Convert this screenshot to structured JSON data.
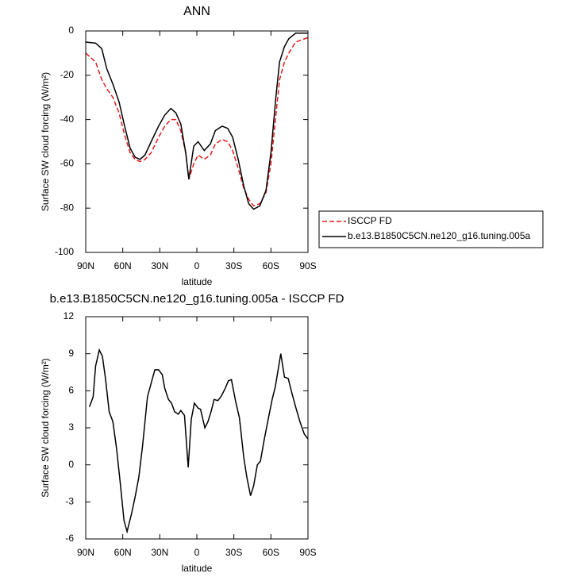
{
  "chart_data": [
    {
      "type": "line",
      "title": "ANN",
      "xlabel": "latitude",
      "ylabel": "Surface SW cloud forcing (W/m²)",
      "x": [
        90,
        82,
        77,
        73,
        68,
        63,
        58.5,
        54,
        50,
        46,
        42,
        37,
        31,
        26,
        21,
        17,
        13,
        9,
        6.5,
        2.5,
        -1,
        -6,
        -11,
        -15,
        -20.5,
        -25,
        -29,
        -33.5,
        -38,
        -42,
        -46,
        -51,
        -56,
        -60,
        -64,
        -67,
        -71,
        -74.5,
        -80,
        -90
      ],
      "series": [
        {
          "name": "ISCCP FD",
          "color": "#e41a1c",
          "dash": "dashed",
          "values": [
            -10,
            -14,
            -22,
            -26,
            -30,
            -37,
            -47,
            -55,
            -58,
            -59,
            -58,
            -55,
            -48,
            -43,
            -40,
            -40,
            -45,
            -55,
            -67,
            -60,
            -56,
            -58,
            -56,
            -51,
            -49,
            -50,
            -54,
            -62,
            -71,
            -76,
            -79,
            -78,
            -73,
            -60,
            -38,
            -22,
            -14,
            -10,
            -5,
            -3
          ]
        },
        {
          "name": "b.e13.B1850C5CN.ne120_g16.tuning.005a",
          "color": "#000000",
          "dash": "solid",
          "values": [
            -5,
            -5.5,
            -8,
            -17,
            -24,
            -32,
            -43,
            -53,
            -57,
            -58,
            -56,
            -50,
            -43,
            -38,
            -35,
            -37,
            -42,
            -55,
            -67,
            -52,
            -50,
            -54,
            -51,
            -45,
            -43,
            -44,
            -48,
            -58,
            -70,
            -78,
            -80.5,
            -79,
            -72,
            -55,
            -30,
            -14,
            -7,
            -3.5,
            -1,
            -1
          ]
        }
      ],
      "xlim": [
        90,
        -90
      ],
      "xticks": [
        {
          "value": 90,
          "label": "90N"
        },
        {
          "value": 60,
          "label": "60N"
        },
        {
          "value": 30,
          "label": "30N"
        },
        0,
        {
          "value": -30,
          "label": "30S"
        },
        {
          "value": -60,
          "label": "60S"
        },
        {
          "value": -90,
          "label": "90S"
        }
      ],
      "ylim": [
        -100,
        0
      ],
      "yticks": [
        0,
        -20,
        -40,
        -60,
        -80,
        -100
      ]
    },
    {
      "type": "line",
      "title": "b.e13.B1850C5CN.ne120_g16.tuning.005a - ISCCP FD",
      "xlabel": "latitude",
      "ylabel": "Surface SW cloud forcing (W/m²)",
      "x": [
        87,
        84,
        82,
        79,
        76.5,
        74,
        71,
        68,
        65,
        62,
        59,
        56.5,
        53,
        50,
        47,
        44,
        40,
        36.5,
        34,
        31,
        28,
        26,
        23,
        20.5,
        18,
        15,
        13,
        10,
        7,
        4.5,
        2,
        -1,
        -3,
        -6.5,
        -9,
        -11.5,
        -14,
        -17,
        -20,
        -23,
        -25.5,
        -28,
        -31.5,
        -34.5,
        -38,
        -40.5,
        -43.5,
        -46,
        -49,
        -51.5,
        -54.5,
        -58,
        -61,
        -63.5,
        -68,
        -71,
        -74,
        -77,
        -80,
        -83.5,
        -87,
        -90
      ],
      "values": [
        4.7,
        5.5,
        8,
        9.3,
        8.8,
        7,
        4.3,
        3.5,
        1.3,
        -1.5,
        -4.5,
        -5.4,
        -4,
        -2.6,
        -1,
        1.5,
        5.5,
        6.8,
        7.7,
        7.7,
        7.3,
        6.2,
        5.3,
        5,
        4.3,
        4.1,
        4.4,
        4,
        -0.2,
        3.7,
        5,
        4.6,
        4.5,
        3,
        3.5,
        4.3,
        5.3,
        5.2,
        5.6,
        6.2,
        6.8,
        6.9,
        5.1,
        3.8,
        0.6,
        -1,
        -2.5,
        -1.7,
        0,
        0.3,
        2,
        3.8,
        5.3,
        6.3,
        9,
        7.1,
        7,
        5.8,
        4.7,
        3.5,
        2.5,
        2.1
      ],
      "color": "#000000",
      "xlim": [
        90,
        -90
      ],
      "xticks": [
        {
          "value": 90,
          "label": "90N"
        },
        {
          "value": 60,
          "label": "60N"
        },
        {
          "value": 30,
          "label": "30N"
        },
        0,
        {
          "value": -30,
          "label": "30S"
        },
        {
          "value": -60,
          "label": "60S"
        },
        {
          "value": -90,
          "label": "90S"
        }
      ],
      "ylim": [
        -6,
        12
      ],
      "yticks": [
        -6,
        -3,
        0,
        3,
        6,
        9,
        12
      ]
    }
  ]
}
